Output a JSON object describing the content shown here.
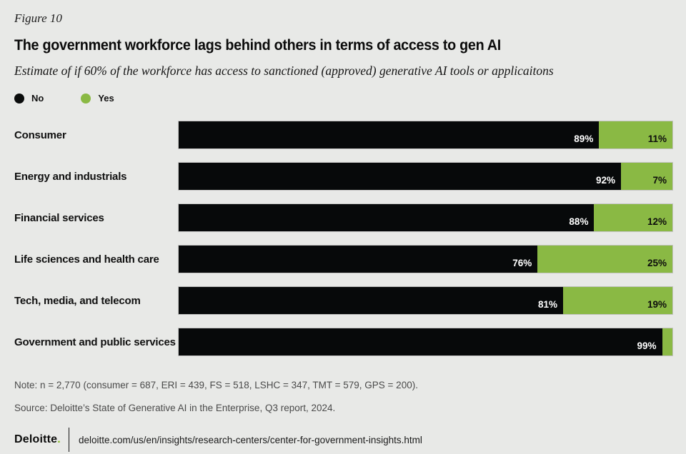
{
  "figure_label": "Figure 10",
  "title": "The government workforce lags behind others in terms of access to gen AI",
  "subtitle": "Estimate of if 60% of the workforce has access to sanctioned (approved) generative AI tools or applicaitons",
  "colors": {
    "background": "#e8e9e7",
    "no_black": "#07090a",
    "yes_green": "#8ab944",
    "brand_green": "#86bc25",
    "note_gray": "#4a4a4a"
  },
  "chart_data": {
    "type": "bar",
    "orientation": "horizontal",
    "stacked": true,
    "unit": "%",
    "xlim": [
      0,
      100
    ],
    "grid": false,
    "legend_position": "top-left",
    "categories": [
      "Consumer",
      "Energy and industrials",
      "Financial services",
      "Life sciences and health care",
      "Tech, media, and telecom",
      "Government and public services"
    ],
    "series": [
      {
        "name": "No",
        "color": "#07090a",
        "values": [
          89,
          92,
          88,
          76,
          81,
          99
        ],
        "labels": [
          "89%",
          "92%",
          "88%",
          "76%",
          "81%",
          "99%"
        ]
      },
      {
        "name": "Yes",
        "color": "#8ab944",
        "values": [
          11,
          7,
          12,
          25,
          19,
          1
        ],
        "labels": [
          "11%",
          "7%",
          "12%",
          "25%",
          "19%",
          ""
        ]
      }
    ]
  },
  "note": "Note: n = 2,770 (consumer = 687, ERI = 439, FS = 518, LSHC = 347, TMT = 579, GPS = 200).",
  "source": "Source: Deloitte’s State of Generative AI in the Enterprise, Q3 report, 2024.",
  "footer": {
    "brand": "Deloitte",
    "brand_period": ".",
    "url": "deloitte.com/us/en/insights/research-centers/center-for-government-insights.html"
  }
}
